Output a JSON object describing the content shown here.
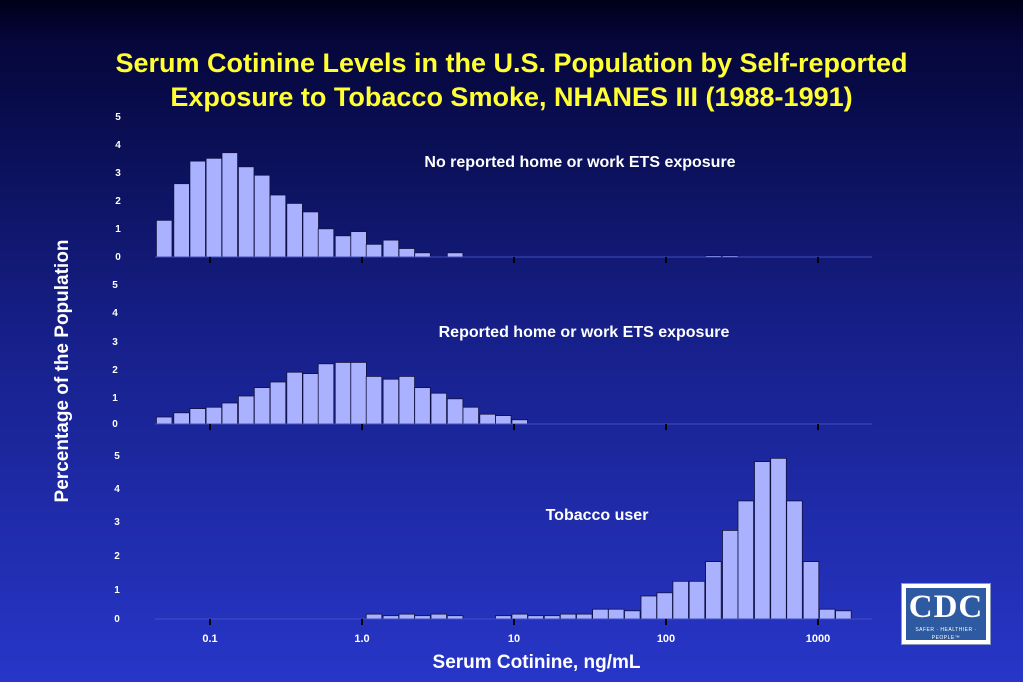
{
  "title": "Serum Cotinine Levels in the U.S. Population by Self-reported Exposure to Tobacco Smoke, NHANES III (1988-1991)",
  "ylabel": "Percentage of the Population",
  "xlabel": "Serum Cotinine, ng/mL",
  "logo": {
    "text": "CDC",
    "tagline": "SAFER · HEALTHIER · PEOPLE™"
  },
  "colors": {
    "bar_fill": "#aab2ff",
    "bar_stroke": "#101040",
    "title": "#ffff33",
    "text": "#ffffff"
  },
  "chart_data": [
    {
      "type": "bar",
      "title": "No reported home or work ETS exposure",
      "xscale": "log",
      "xticks": [
        0.1,
        1.0,
        10,
        100,
        1000
      ],
      "xtick_labels": [
        "",
        "",
        "",
        "",
        ""
      ],
      "yticks": [
        0,
        1,
        2,
        3,
        4,
        5
      ],
      "ylim": [
        0,
        5
      ],
      "bins": [
        {
          "x": 0.05,
          "value": 1.3
        },
        {
          "x": 0.065,
          "value": 2.6
        },
        {
          "x": 0.083,
          "value": 3.4
        },
        {
          "x": 0.106,
          "value": 3.5
        },
        {
          "x": 0.135,
          "value": 3.7
        },
        {
          "x": 0.173,
          "value": 3.2
        },
        {
          "x": 0.22,
          "value": 2.9
        },
        {
          "x": 0.28,
          "value": 2.2
        },
        {
          "x": 0.36,
          "value": 1.9
        },
        {
          "x": 0.46,
          "value": 1.6
        },
        {
          "x": 0.58,
          "value": 1.0
        },
        {
          "x": 0.75,
          "value": 0.75
        },
        {
          "x": 0.95,
          "value": 0.9
        },
        {
          "x": 1.2,
          "value": 0.45
        },
        {
          "x": 1.55,
          "value": 0.6
        },
        {
          "x": 1.97,
          "value": 0.3
        },
        {
          "x": 2.5,
          "value": 0.15
        },
        {
          "x": 4.1,
          "value": 0.15
        },
        {
          "x": 205,
          "value": 0.05
        },
        {
          "x": 265,
          "value": 0.05
        }
      ]
    },
    {
      "type": "bar",
      "title": "Reported home or work ETS exposure",
      "xscale": "log",
      "xticks": [
        0.1,
        1.0,
        10,
        100,
        1000
      ],
      "xtick_labels": [
        "",
        "",
        "",
        "",
        ""
      ],
      "yticks": [
        0,
        1,
        2,
        3,
        4,
        5
      ],
      "ylim": [
        0,
        5
      ],
      "bins": [
        {
          "x": 0.05,
          "value": 0.25
        },
        {
          "x": 0.065,
          "value": 0.4
        },
        {
          "x": 0.083,
          "value": 0.55
        },
        {
          "x": 0.106,
          "value": 0.6
        },
        {
          "x": 0.135,
          "value": 0.75
        },
        {
          "x": 0.173,
          "value": 1.0
        },
        {
          "x": 0.22,
          "value": 1.3
        },
        {
          "x": 0.28,
          "value": 1.5
        },
        {
          "x": 0.36,
          "value": 1.85
        },
        {
          "x": 0.46,
          "value": 1.8
        },
        {
          "x": 0.58,
          "value": 2.15
        },
        {
          "x": 0.75,
          "value": 2.2
        },
        {
          "x": 0.95,
          "value": 2.2
        },
        {
          "x": 1.2,
          "value": 1.7
        },
        {
          "x": 1.55,
          "value": 1.6
        },
        {
          "x": 1.97,
          "value": 1.7
        },
        {
          "x": 2.5,
          "value": 1.3
        },
        {
          "x": 3.2,
          "value": 1.1
        },
        {
          "x": 4.1,
          "value": 0.9
        },
        {
          "x": 5.2,
          "value": 0.6
        },
        {
          "x": 6.7,
          "value": 0.35
        },
        {
          "x": 8.5,
          "value": 0.3
        },
        {
          "x": 10.9,
          "value": 0.15
        }
      ]
    },
    {
      "type": "bar",
      "title": "Tobacco user",
      "xscale": "log",
      "xticks": [
        0.1,
        1.0,
        10,
        100,
        1000
      ],
      "xtick_labels": [
        "0.1",
        "1.0",
        "10",
        "100",
        "1000"
      ],
      "yticks": [
        0,
        1,
        2,
        3,
        4,
        5
      ],
      "ylim": [
        0,
        5
      ],
      "bins": [
        {
          "x": 1.2,
          "value": 0.15
        },
        {
          "x": 1.55,
          "value": 0.1
        },
        {
          "x": 1.97,
          "value": 0.15
        },
        {
          "x": 2.5,
          "value": 0.1
        },
        {
          "x": 3.2,
          "value": 0.15
        },
        {
          "x": 4.1,
          "value": 0.1
        },
        {
          "x": 8.5,
          "value": 0.1
        },
        {
          "x": 10.9,
          "value": 0.15
        },
        {
          "x": 13.9,
          "value": 0.1
        },
        {
          "x": 17.8,
          "value": 0.1
        },
        {
          "x": 22.7,
          "value": 0.15
        },
        {
          "x": 29,
          "value": 0.15
        },
        {
          "x": 37,
          "value": 0.3
        },
        {
          "x": 47,
          "value": 0.3
        },
        {
          "x": 60,
          "value": 0.25
        },
        {
          "x": 77,
          "value": 0.7
        },
        {
          "x": 98,
          "value": 0.8
        },
        {
          "x": 125,
          "value": 1.15
        },
        {
          "x": 160,
          "value": 1.15
        },
        {
          "x": 205,
          "value": 1.75
        },
        {
          "x": 265,
          "value": 2.7
        },
        {
          "x": 335,
          "value": 3.6
        },
        {
          "x": 430,
          "value": 4.8
        },
        {
          "x": 550,
          "value": 4.9
        },
        {
          "x": 700,
          "value": 3.6
        },
        {
          "x": 900,
          "value": 1.75
        },
        {
          "x": 1150,
          "value": 0.3
        },
        {
          "x": 1470,
          "value": 0.25
        }
      ]
    }
  ]
}
